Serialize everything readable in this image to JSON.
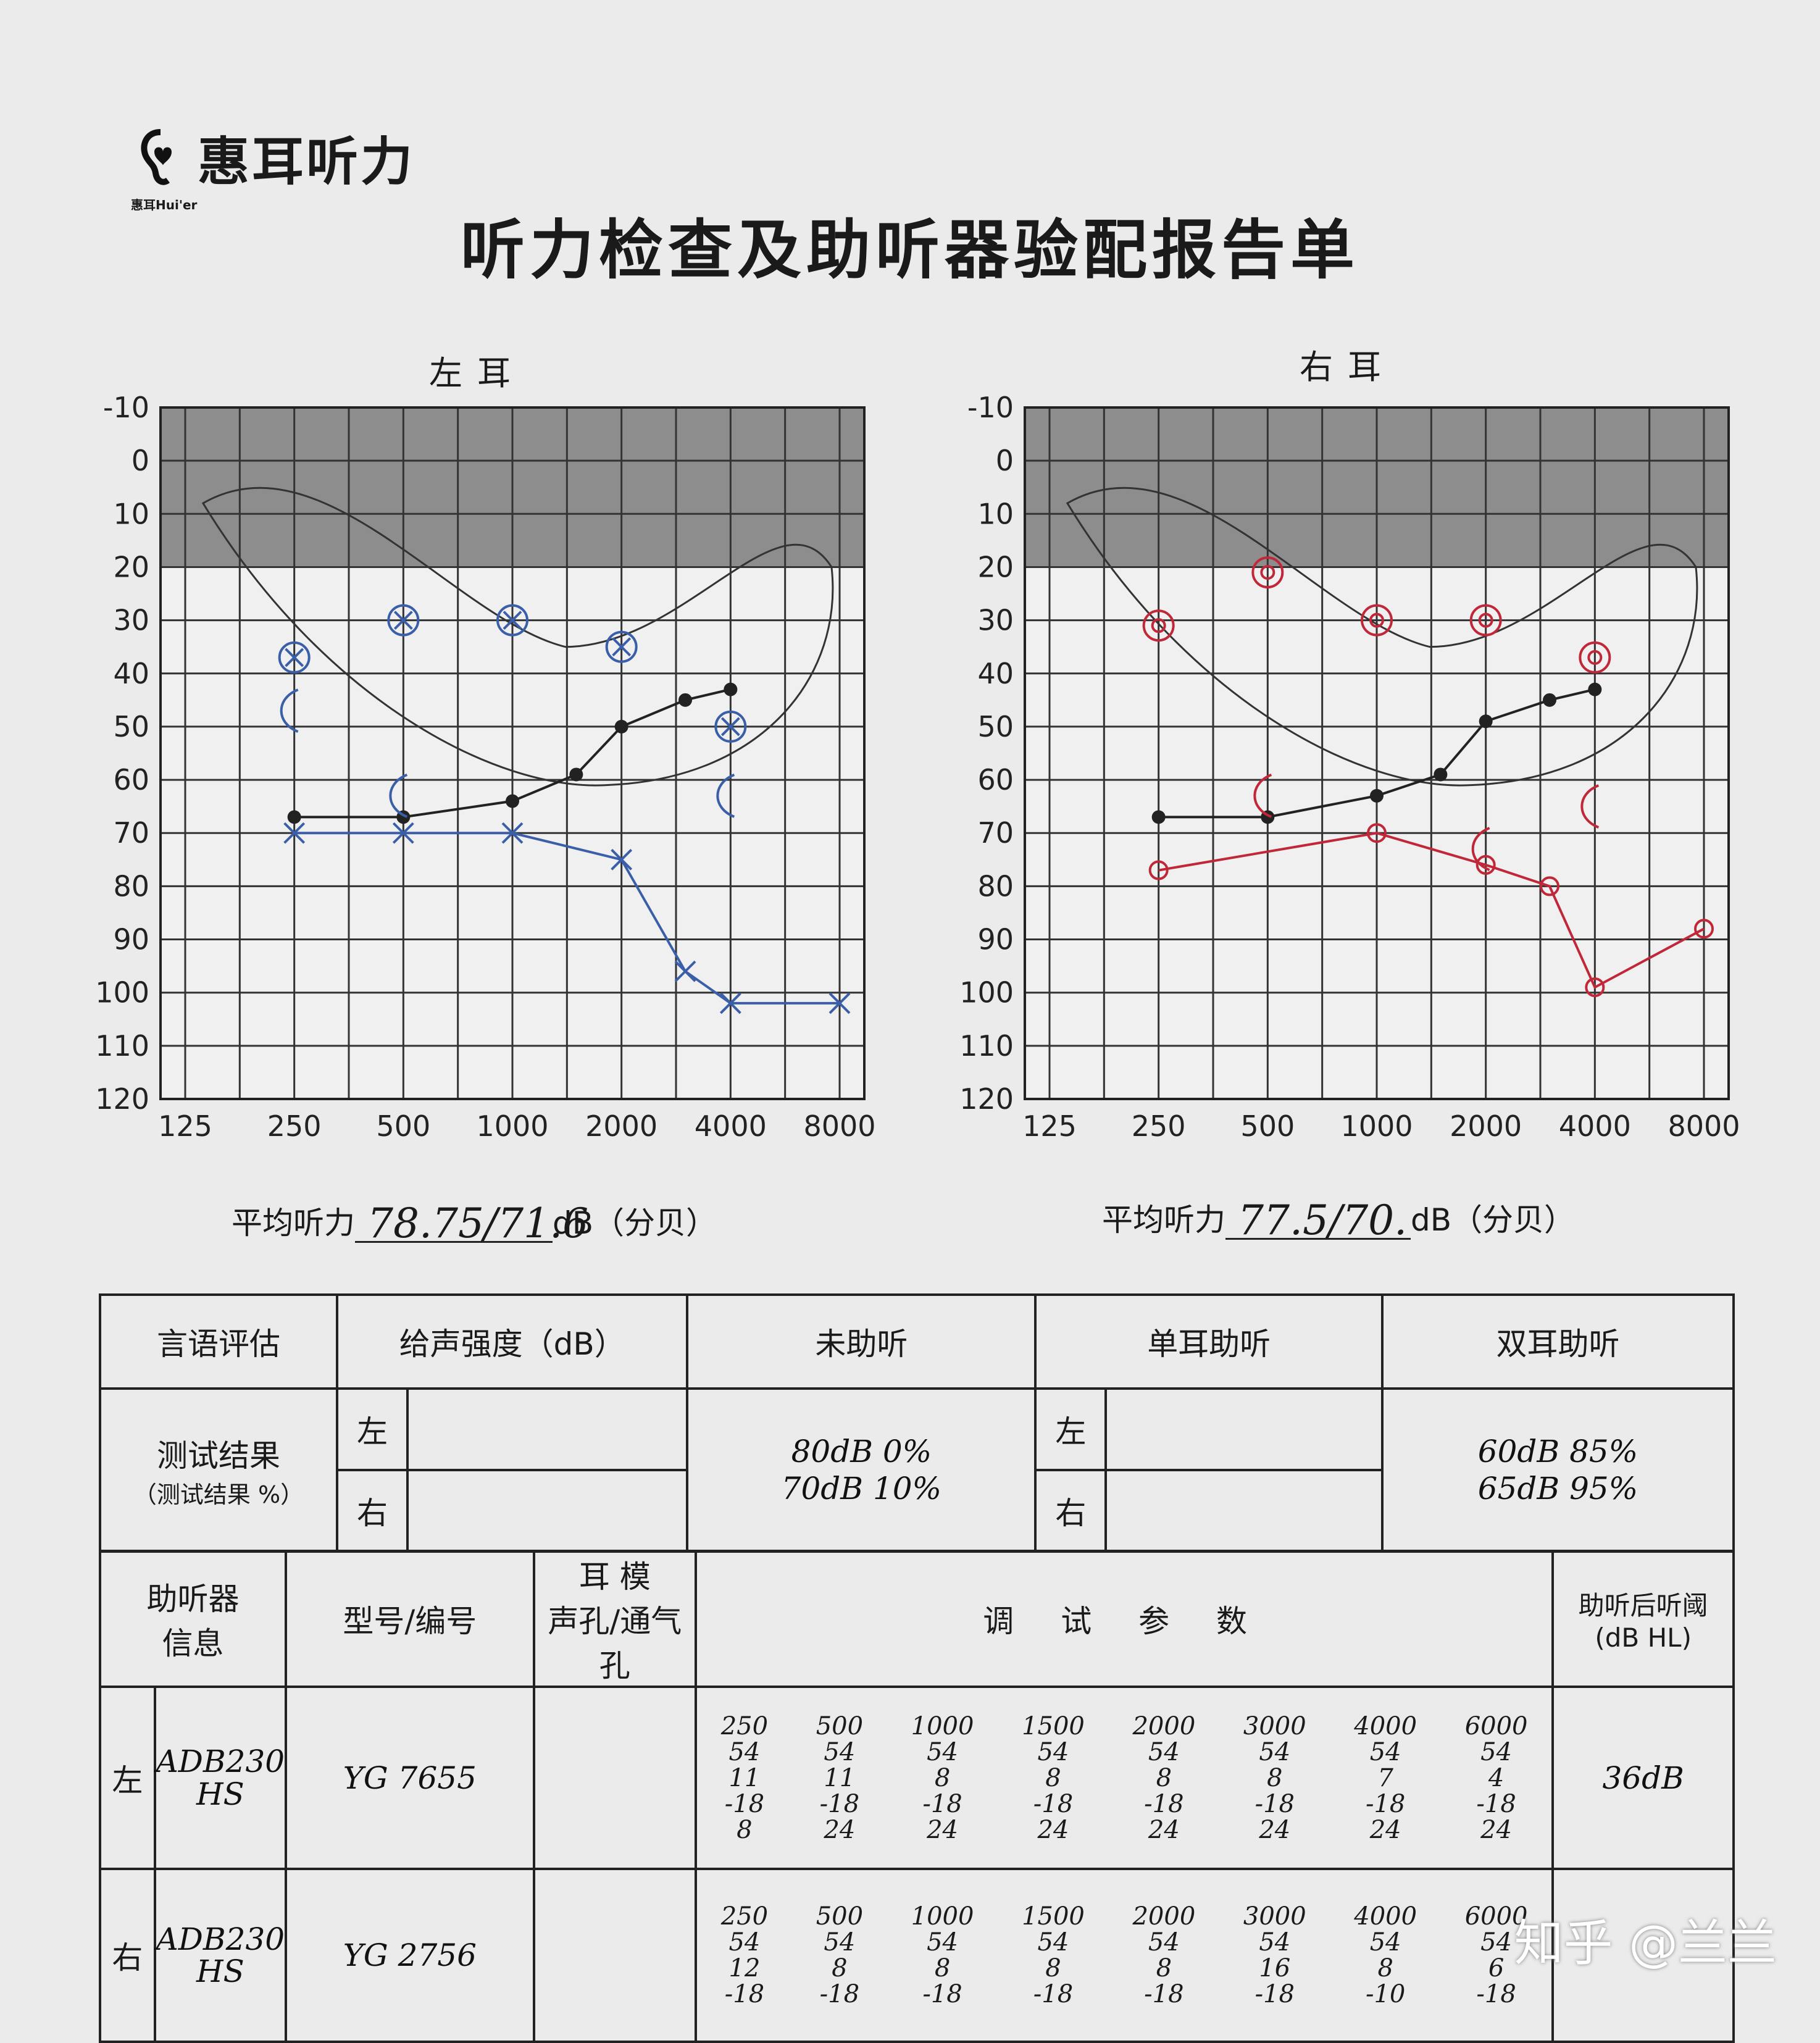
{
  "brand": {
    "name": "惠耳听力",
    "sub": "惠耳Hui'er"
  },
  "title": "听力检查及助听器验配报告单",
  "left_ear": {
    "title": "左耳",
    "avg_label": "平均听力",
    "avg_value": "78.75/71.6",
    "avg_unit": "dB（分贝）"
  },
  "right_ear": {
    "title": "右耳",
    "avg_label": "平均听力",
    "avg_value": "77.5/70.",
    "avg_unit": "dB（分贝）"
  },
  "chart_data": [
    {
      "type": "line",
      "title": "左耳",
      "x": [
        125,
        250,
        500,
        1000,
        2000,
        4000,
        8000
      ],
      "x_tick_labels": [
        "125",
        "250",
        "500",
        "1000",
        "2000",
        "4000",
        "8000"
      ],
      "y_tick_labels": [
        "-10",
        "0",
        "10",
        "20",
        "30",
        "40",
        "50",
        "60",
        "70",
        "80",
        "90",
        "100",
        "110",
        "120"
      ],
      "ylim": [
        120,
        -10
      ],
      "y_inverted": true,
      "shaded_band": [
        -10,
        20
      ],
      "series": [
        {
          "marker": "dot",
          "color": "#222222",
          "points": [
            [
              250,
              67
            ],
            [
              500,
              67
            ],
            [
              1000,
              64
            ],
            [
              1500,
              59
            ],
            [
              2000,
              50
            ],
            [
              3000,
              45
            ],
            [
              4000,
              43
            ]
          ]
        },
        {
          "marker": "x",
          "color": "#3a5fa8",
          "points": [
            [
              250,
              70
            ],
            [
              500,
              70
            ],
            [
              1000,
              70
            ],
            [
              2000,
              75
            ],
            [
              3000,
              96
            ],
            [
              4000,
              102
            ],
            [
              8000,
              102
            ]
          ]
        },
        {
          "marker": "circle-x",
          "color": "#3a5fa8",
          "points": [
            [
              250,
              37
            ],
            [
              500,
              30
            ],
            [
              1000,
              30
            ],
            [
              2000,
              35
            ],
            [
              4000,
              50
            ]
          ]
        },
        {
          "marker": "bracket",
          "color": "#3a5fa8",
          "points": [
            [
              250,
              47
            ],
            [
              500,
              63
            ],
            [
              4000,
              63
            ]
          ]
        }
      ]
    },
    {
      "type": "line",
      "title": "右耳",
      "x": [
        125,
        250,
        500,
        1000,
        2000,
        4000,
        8000
      ],
      "x_tick_labels": [
        "125",
        "250",
        "500",
        "1000",
        "2000",
        "4000",
        "8000"
      ],
      "y_tick_labels": [
        "-10",
        "0",
        "10",
        "20",
        "30",
        "40",
        "50",
        "60",
        "70",
        "80",
        "90",
        "100",
        "110",
        "120"
      ],
      "ylim": [
        120,
        -10
      ],
      "y_inverted": true,
      "shaded_band": [
        -10,
        20
      ],
      "series": [
        {
          "marker": "dot",
          "color": "#222222",
          "points": [
            [
              250,
              67
            ],
            [
              500,
              67
            ],
            [
              1000,
              63
            ],
            [
              1500,
              59
            ],
            [
              2000,
              49
            ],
            [
              3000,
              45
            ],
            [
              4000,
              43
            ]
          ]
        },
        {
          "marker": "circle",
          "color": "#c0283a",
          "points": [
            [
              250,
              77
            ],
            [
              1000,
              70
            ],
            [
              2000,
              76
            ],
            [
              3000,
              80
            ],
            [
              4000,
              99
            ],
            [
              8000,
              88
            ]
          ]
        },
        {
          "marker": "circle-r",
          "color": "#c0283a",
          "points": [
            [
              250,
              31
            ],
            [
              500,
              21
            ],
            [
              1000,
              30
            ],
            [
              2000,
              30
            ],
            [
              4000,
              37
            ]
          ]
        },
        {
          "marker": "bracket",
          "color": "#c0283a",
          "points": [
            [
              500,
              63
            ],
            [
              2000,
              73
            ],
            [
              4000,
              65
            ]
          ]
        }
      ]
    }
  ],
  "speech": {
    "header": {
      "c1": "言语评估",
      "c2": "给声强度（dB）",
      "c3": "未助听",
      "c4": "单耳助听",
      "c5": "双耳助听"
    },
    "row_label": "测试结果",
    "row_sublabel": "（测试结果 %）",
    "left": "左",
    "right": "右",
    "unaided": "80dB 0%\n70dB 10%",
    "binaural": "60dB 85%\n65dB 95%"
  },
  "aid": {
    "header": {
      "c1": "助听器\n信息",
      "c2": "型号/编号",
      "c3a": "耳 模",
      "c3b": "声孔/通气孔",
      "c4": "调 试 参 数",
      "c5a": "助听后听阈",
      "c5b": "(dB HL)"
    },
    "left_label": "左",
    "right_label": "右",
    "left_model": "ADB230\nHS",
    "left_serial": "YG 7655",
    "right_model": "ADB230\nHS",
    "right_serial": "YG 2756",
    "left_threshold": "36dB",
    "left_params": [
      "250\n54\n11\n-18\n8",
      "500\n54\n11\n-18\n24",
      "1000\n54\n8\n-18\n24",
      "1500\n54\n8\n-18\n24",
      "2000\n54\n8\n-18\n24",
      "3000\n54\n8\n-18\n24",
      "4000\n54\n7\n-18\n24",
      "6000\n54\n4\n-18\n24"
    ],
    "right_params": [
      "250\n54\n12\n-18",
      "500\n54\n8\n-18",
      "1000\n54\n8\n-18",
      "1500\n54\n8\n-18",
      "2000\n54\n8\n-18",
      "3000\n54\n16\n-18",
      "4000\n54\n8\n-10",
      "6000\n54\n6\n-18"
    ]
  },
  "watermark": "知乎 @兰兰"
}
